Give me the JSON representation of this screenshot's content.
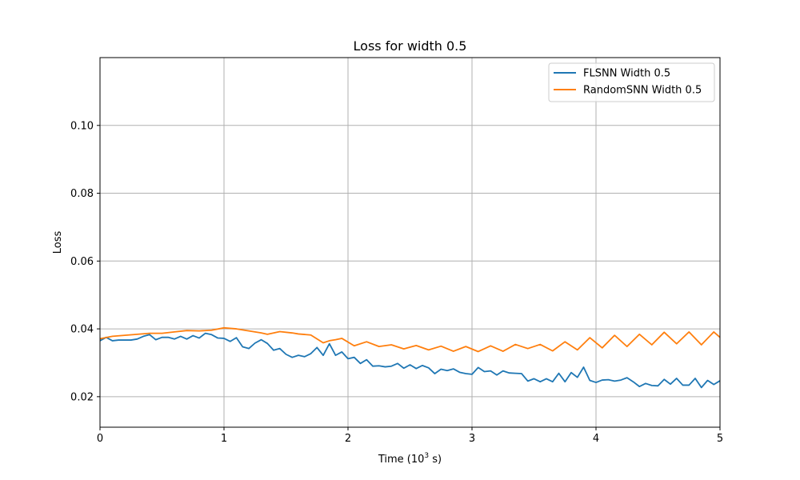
{
  "chart_data": {
    "type": "line",
    "title": "Loss for width 0.5",
    "xlabel": "Time (10",
    "xlabel_sup": "3",
    "xlabel_suffix": " s)",
    "ylabel": "Loss",
    "xlim": [
      0,
      5
    ],
    "ylim": [
      0.011,
      0.12
    ],
    "xticks": [
      0,
      1,
      2,
      3,
      4,
      5
    ],
    "yticks": [
      0.02,
      0.04,
      0.06,
      0.08,
      0.1
    ],
    "grid": true,
    "legend_position": "top-right",
    "series": [
      {
        "name": "FLSNN Width 0.5",
        "color": "#1f77b4",
        "x": [
          0,
          0.05,
          0.1,
          0.15,
          0.2,
          0.25,
          0.3,
          0.35,
          0.4,
          0.45,
          0.5,
          0.55,
          0.6,
          0.65,
          0.7,
          0.75,
          0.8,
          0.85,
          0.9,
          0.95,
          1.0,
          1.05,
          1.1,
          1.15,
          1.2,
          1.25,
          1.3,
          1.35,
          1.4,
          1.45,
          1.5,
          1.55,
          1.6,
          1.65,
          1.7,
          1.75,
          1.8,
          1.85,
          1.9,
          1.95,
          2.0,
          2.05,
          2.1,
          2.15,
          2.2,
          2.25,
          2.3,
          2.35,
          2.4,
          2.45,
          2.5,
          2.55,
          2.6,
          2.65,
          2.7,
          2.75,
          2.8,
          2.85,
          2.9,
          2.95,
          3.0,
          3.05,
          3.1,
          3.15,
          3.2,
          3.25,
          3.3,
          3.35,
          3.4,
          3.45,
          3.5,
          3.55,
          3.6,
          3.65,
          3.7,
          3.75,
          3.8,
          3.85,
          3.9,
          3.95,
          4.0,
          4.05,
          4.1,
          4.15,
          4.2,
          4.25,
          4.3,
          4.35,
          4.4,
          4.45,
          4.5,
          4.55,
          4.6,
          4.65,
          4.7,
          4.75,
          4.8,
          4.85,
          4.9,
          4.95,
          5.0
        ],
        "values": [
          0.0365,
          0.0375,
          0.0365,
          0.0367,
          0.0367,
          0.0367,
          0.037,
          0.0378,
          0.0383,
          0.0368,
          0.0375,
          0.0375,
          0.037,
          0.0378,
          0.037,
          0.038,
          0.0373,
          0.0387,
          0.0383,
          0.0373,
          0.0372,
          0.0363,
          0.0374,
          0.0347,
          0.0342,
          0.0358,
          0.0368,
          0.0357,
          0.0337,
          0.0342,
          0.0325,
          0.0316,
          0.0322,
          0.0318,
          0.0327,
          0.0345,
          0.0322,
          0.0356,
          0.0322,
          0.0332,
          0.0312,
          0.0316,
          0.0298,
          0.0309,
          0.029,
          0.0291,
          0.0288,
          0.029,
          0.0298,
          0.0284,
          0.0294,
          0.0283,
          0.0292,
          0.0285,
          0.0268,
          0.0281,
          0.0277,
          0.0282,
          0.0272,
          0.0268,
          0.0266,
          0.0286,
          0.0274,
          0.0276,
          0.0264,
          0.0276,
          0.027,
          0.0269,
          0.0268,
          0.0246,
          0.0253,
          0.0244,
          0.0253,
          0.0244,
          0.0269,
          0.0244,
          0.0271,
          0.0257,
          0.0287,
          0.0248,
          0.0242,
          0.0249,
          0.025,
          0.0246,
          0.0249,
          0.0256,
          0.0244,
          0.023,
          0.0239,
          0.0233,
          0.0232,
          0.0251,
          0.0237,
          0.0254,
          0.0234,
          0.0234,
          0.0254,
          0.0227,
          0.0248,
          0.0236,
          0.0247
        ]
      },
      {
        "name": "RandomSNN Width 0.5",
        "color": "#ff7f0e",
        "x": [
          0,
          0.1,
          0.2,
          0.3,
          0.4,
          0.5,
          0.6,
          0.7,
          0.8,
          0.9,
          1.0,
          1.1,
          1.2,
          1.3,
          1.35,
          1.45,
          1.55,
          1.6,
          1.7,
          1.8,
          1.85,
          1.9,
          1.95,
          2.05,
          2.15,
          2.25,
          2.35,
          2.45,
          2.55,
          2.65,
          2.75,
          2.85,
          2.95,
          3.05,
          3.15,
          3.25,
          3.35,
          3.45,
          3.55,
          3.65,
          3.75,
          3.85,
          3.95,
          4.05,
          4.15,
          4.25,
          4.35,
          4.45,
          4.55,
          4.65,
          4.75,
          4.85,
          4.95,
          5.0
        ],
        "values": [
          0.0371,
          0.0378,
          0.0381,
          0.0384,
          0.0387,
          0.0387,
          0.0391,
          0.0395,
          0.0394,
          0.0396,
          0.0403,
          0.04,
          0.0394,
          0.0388,
          0.0384,
          0.0392,
          0.0388,
          0.0385,
          0.0382,
          0.0359,
          0.0365,
          0.0368,
          0.0372,
          0.035,
          0.0362,
          0.0348,
          0.0353,
          0.0341,
          0.0351,
          0.0338,
          0.0349,
          0.0334,
          0.0348,
          0.0333,
          0.035,
          0.0334,
          0.0354,
          0.0342,
          0.0354,
          0.0335,
          0.0362,
          0.0338,
          0.0374,
          0.0344,
          0.0381,
          0.0348,
          0.0384,
          0.0353,
          0.039,
          0.0356,
          0.0391,
          0.0353,
          0.0391,
          0.0375
        ]
      }
    ]
  }
}
